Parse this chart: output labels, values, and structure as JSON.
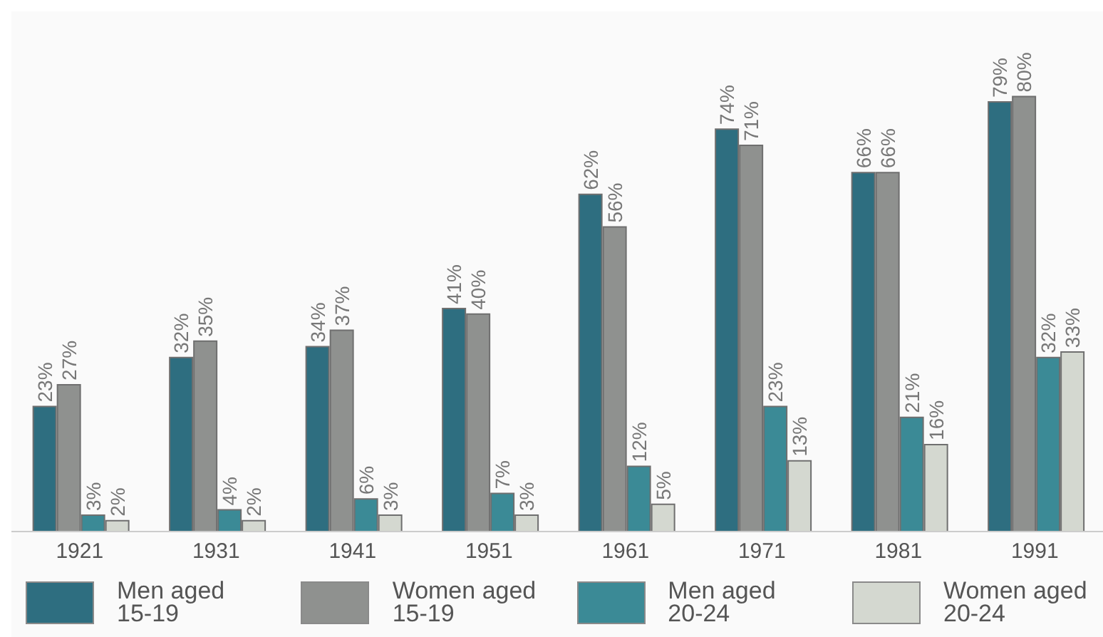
{
  "chart_data": {
    "type": "bar",
    "categories": [
      "1921",
      "1931",
      "1941",
      "1951",
      "1961",
      "1971",
      "1981",
      "1991"
    ],
    "series": [
      {
        "name": "Men aged 15-19",
        "color": "#2e6e80",
        "values": [
          23,
          32,
          34,
          41,
          62,
          74,
          66,
          79
        ],
        "value_labels": [
          "23%",
          "32%",
          "34%",
          "41%",
          "62%",
          "74%",
          "66%",
          "79%"
        ]
      },
      {
        "name": "Women aged 15-19",
        "color": "#8f918f",
        "values": [
          27,
          35,
          37,
          40,
          56,
          71,
          66,
          80
        ],
        "value_labels": [
          "27%",
          "35%",
          "37%",
          "40%",
          "56%",
          "71%",
          "66%",
          "80%"
        ]
      },
      {
        "name": "Men aged 20-24",
        "color": "#3b8a96",
        "values": [
          3,
          4,
          6,
          7,
          12,
          23,
          21,
          32
        ],
        "value_labels": [
          "3%",
          "4%",
          "6%",
          "7%",
          "12%",
          "23%",
          "21%",
          "32%"
        ]
      },
      {
        "name": "Women aged 20-24",
        "color": "#d4d8d0",
        "values": [
          2,
          2,
          3,
          3,
          5,
          13,
          16,
          33
        ],
        "value_labels": [
          "2%",
          "2%",
          "3%",
          "3%",
          "5%",
          "13%",
          "16%",
          "33%"
        ]
      }
    ],
    "legend": "bottom"
  }
}
